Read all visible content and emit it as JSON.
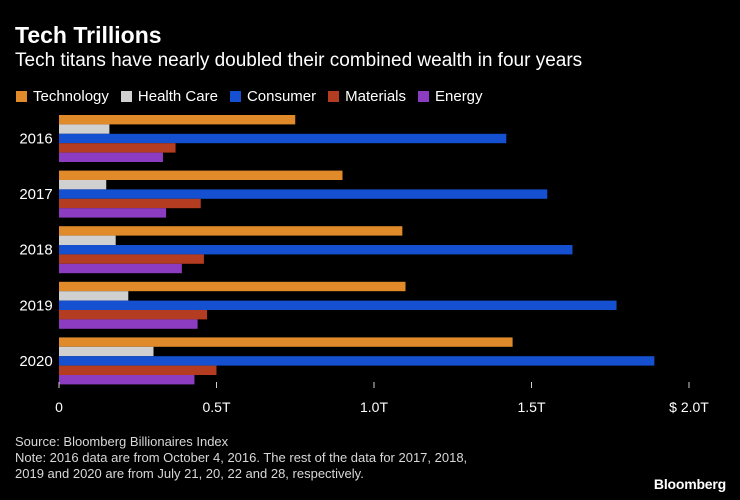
{
  "chart_data": {
    "type": "bar",
    "orientation": "horizontal",
    "title": "Tech Trillions",
    "subtitle": "Tech titans have nearly doubled their combined wealth in four years",
    "categories": [
      "2016",
      "2017",
      "2018",
      "2019",
      "2020"
    ],
    "series": [
      {
        "name": "Technology",
        "color": "#e08a2a",
        "values": [
          0.75,
          0.9,
          1.09,
          1.1,
          1.44
        ]
      },
      {
        "name": "Health Care",
        "color": "#d0d0d0",
        "values": [
          0.16,
          0.15,
          0.18,
          0.22,
          0.3
        ]
      },
      {
        "name": "Consumer",
        "color": "#1450d0",
        "values": [
          1.42,
          1.55,
          1.63,
          1.77,
          1.89
        ]
      },
      {
        "name": "Materials",
        "color": "#b43c20",
        "values": [
          0.37,
          0.45,
          0.46,
          0.47,
          0.5
        ]
      },
      {
        "name": "Energy",
        "color": "#8c3cc0",
        "values": [
          0.33,
          0.34,
          0.39,
          0.44,
          0.43
        ]
      }
    ],
    "xlim": [
      0,
      2.0
    ],
    "xticks": [
      0,
      0.5,
      1.0,
      1.5,
      2.0
    ],
    "xtick_labels": [
      "0",
      "0.5T",
      "1.0T",
      "1.5T",
      "$ 2.0T"
    ],
    "xlabel": "",
    "ylabel": "",
    "legend_position": "top-left",
    "grid": false
  },
  "footer": {
    "source": "Source: Bloomberg Billionaires Index",
    "note_line1": "Note: 2016 data are from October 4, 2016. The rest of the data for 2017, 2018,",
    "note_line2": "2019 and 2020 are from July 21, 20, 22 and 28, respectively."
  },
  "brand": "Bloomberg"
}
